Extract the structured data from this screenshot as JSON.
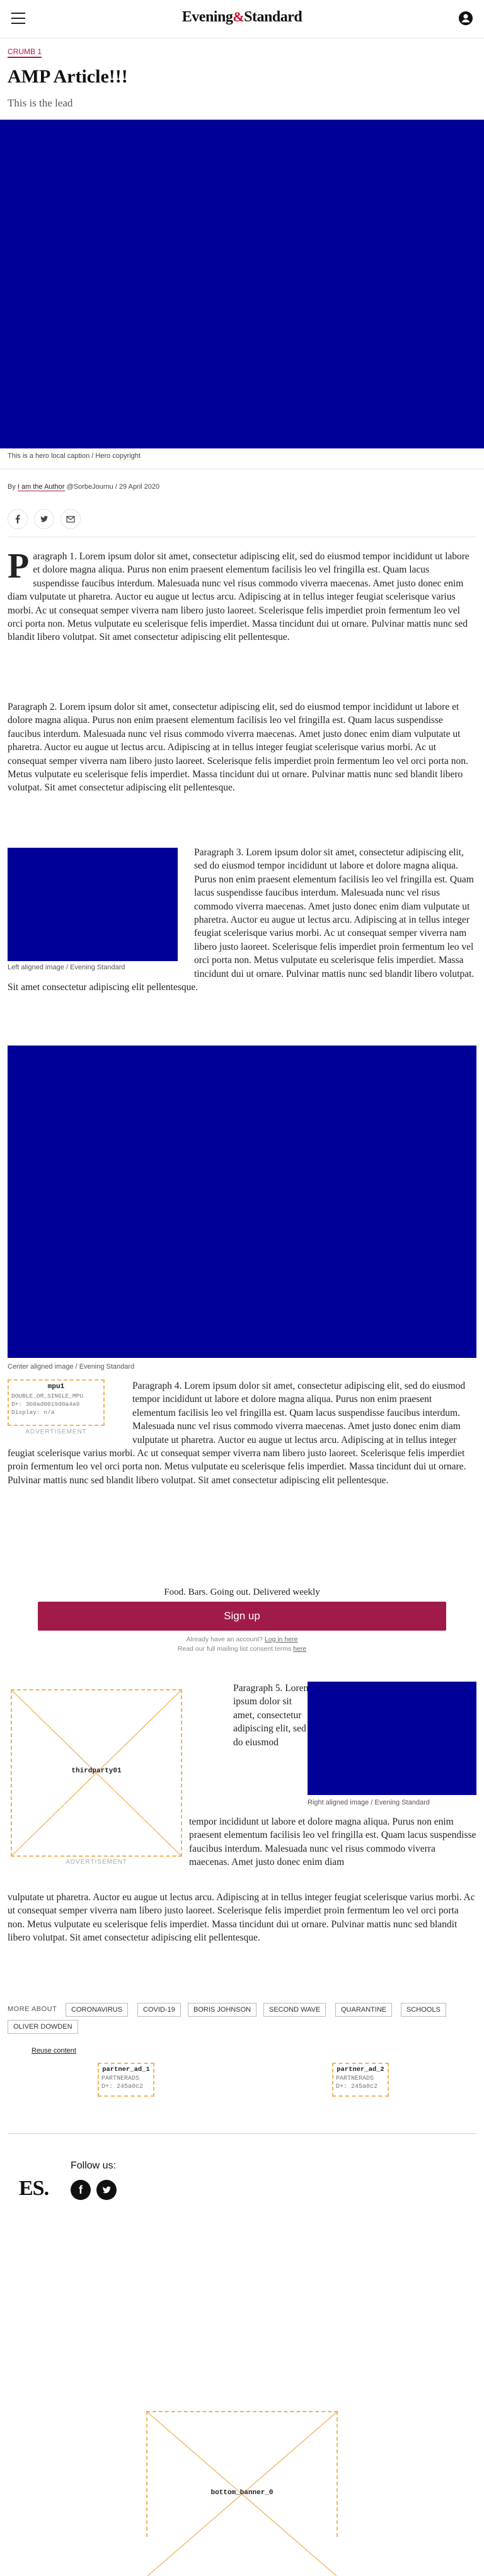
{
  "header": {
    "logo_left": "Evening",
    "logo_amp": "&",
    "logo_right": "Standard"
  },
  "crumb": "CRUMB 1",
  "article": {
    "title": "AMP Article!!!",
    "lead": "This is the lead",
    "hero_caption": "This is a hero local caption / Hero copyright",
    "byline": {
      "prefix": "By",
      "author": "I am the Author",
      "handle": "@SorbeJournu",
      "sep": "/",
      "date": "29 April 2020"
    },
    "share": [
      "f",
      "t",
      "✉"
    ],
    "p1_first": "P",
    "p1_rest": "aragraph 1. Lorem ipsum dolor sit amet, consectetur adipiscing elit, sed do eiusmod tempor incididunt ut labore et dolore magna aliqua. Purus non enim praesent elementum facilisis leo vel fringilla est. Quam lacus suspendisse faucibus interdum. Malesuada nunc vel risus commodo viverra maecenas. Amet justo donec enim diam vulputate ut pharetra. Auctor eu augue ut lectus arcu. Adipiscing at in tellus integer feugiat scelerisque varius morbi. Ac ut consequat semper viverra nam libero justo laoreet. Scelerisque felis imperdiet proin fermentum leo vel orci porta non. Metus vulputate eu scelerisque felis imperdiet. Massa tincidunt dui ut ornare. Pulvinar mattis nunc sed blandit libero volutpat. Sit amet consectetur adipiscing elit pellentesque.",
    "p2": "Paragraph 2. Lorem ipsum dolor sit amet, consectetur adipiscing elit, sed do eiusmod tempor incididunt ut labore et dolore magna aliqua. Purus non enim praesent elementum facilisis leo vel fringilla est. Quam lacus suspendisse faucibus interdum. Malesuada nunc vel risus commodo viverra maecenas. Amet justo donec enim diam vulputate ut pharetra. Auctor eu augue ut lectus arcu. Adipiscing at in tellus integer feugiat scelerisque varius morbi. Ac ut consequat semper viverra nam libero justo laoreet. Scelerisque felis imperdiet proin fermentum leo vel orci porta non. Metus vulputate eu scelerisque felis imperdiet. Massa tincidunt dui ut ornare. Pulvinar mattis nunc sed blandit libero volutpat. Sit amet consectetur adipiscing elit pellentesque.",
    "left_caption": "Left aligned image / Evening Standard",
    "p3": "Paragraph 3. Lorem ipsum dolor sit amet, consectetur adipiscing elit, sed do eiusmod tempor incididunt ut labore et dolore magna aliqua. Purus non enim praesent elementum facilisis leo vel fringilla est. Quam lacus suspendisse faucibus interdum. Malesuada nunc vel risus commodo viverra maecenas. Amet justo donec enim diam vulputate ut pharetra. Auctor eu augue ut lectus arcu. Adipiscing at in tellus integer feugiat scelerisque varius morbi. Ac ut consequat semper viverra nam libero justo laoreet. Scelerisque felis imperdiet proin fermentum leo vel orci porta non. Metus vulputate eu scelerisque felis imperdiet. Massa tincidunt dui ut ornare. Pulvinar mattis nunc sed blandit libero volutpat. Sit amet consectetur adipiscing elit pellentesque.",
    "center_caption": "Center aligned image / Evening Standard",
    "p4": "Paragraph 4. Lorem ipsum dolor sit amet, consectetur adipiscing elit, sed do eiusmod tempor incididunt ut labore et dolore magna aliqua. Purus non enim praesent elementum facilisis leo vel fringilla est. Quam lacus suspendisse faucibus interdum. Malesuada nunc vel risus commodo viverra maecenas. Amet justo donec enim diam vulputate ut pharetra. Auctor eu augue ut lectus arcu. Adipiscing at in tellus integer feugiat scelerisque varius morbi. Ac ut consequat semper viverra nam libero justo laoreet. Scelerisque felis imperdiet proin fermentum leo vel orci porta non. Metus vulputate eu scelerisque felis imperdiet. Massa tincidunt dui ut ornare. Pulvinar mattis nunc sed blandit libero volutpat. Sit amet consectetur adipiscing elit pellentesque.",
    "p5": "Paragraph 5. Lorem ipsum dolor sit amet, consectetur adipiscing elit, sed do eiusmod tempor incididunt ut labore et dolore magna aliqua. Purus non enim praesent elementum facilisis leo vel fringilla est. Quam lacus suspendisse faucibus interdum. Malesuada nunc vel risus commodo viverra maecenas. Amet justo donec enim diam vulputate ut pharetra. Auctor eu augue ut lectus arcu. Adipiscing at in tellus integer feugiat scelerisque varius morbi. Ac ut consequat semper viverra nam libero justo laoreet. Scelerisque felis imperdiet proin fermentum leo vel orci porta non. Metus vulputate eu scelerisque felis imperdiet. Massa tincidunt dui ut ornare. Pulvinar mattis nunc sed blandit libero volutpat. Sit amet consectetur adipiscing elit pellentesque.",
    "right_caption": "Right aligned image / Evening Standard"
  },
  "ads": {
    "mpu1_name": "mpu1",
    "mpu1_line1": "DOUBLE_OR_SINGLE_MPU",
    "mpu1_line2": "D+: 3b0ad0019d0a4a9",
    "mpu1_line3": "Display: n/a",
    "advertisement": "ADVERTISEMENT",
    "thirdparty": "thirdparty01",
    "partner_ad_1": "partner_ad_1",
    "partner_ad_2": "partner_ad_2",
    "partner_sub": "PARTNERADS",
    "partner_id": "D+: 245a0c2",
    "bottom_banner": "bottom_banner_0"
  },
  "newsletter": {
    "title": "Food. Bars. Going out. Delivered weekly",
    "button": "Sign up",
    "account_prefix": "Already have an account?",
    "login": "Log in here",
    "consent_prefix": "Read our full mailing list consent terms",
    "consent_link": "here"
  },
  "more_about": {
    "label": "MORE ABOUT",
    "tags": [
      "CORONAVIRUS",
      "COVID-19",
      "BORIS JOHNSON",
      "SECOND WAVE",
      "QUARANTINE",
      "SCHOOLS",
      "OLIVER DOWDEN"
    ]
  },
  "reuse": "Reuse content",
  "footer": {
    "follow": "Follow us:",
    "brand": "ES."
  },
  "colors": {
    "accent": "#b4134a",
    "button": "#a01b4a",
    "image_placeholder": "#000099",
    "ad_border": "#f0b35b"
  },
  "icons": [
    "hamburger-icon",
    "account-icon",
    "facebook-icon",
    "twitter-icon",
    "email-icon"
  ]
}
